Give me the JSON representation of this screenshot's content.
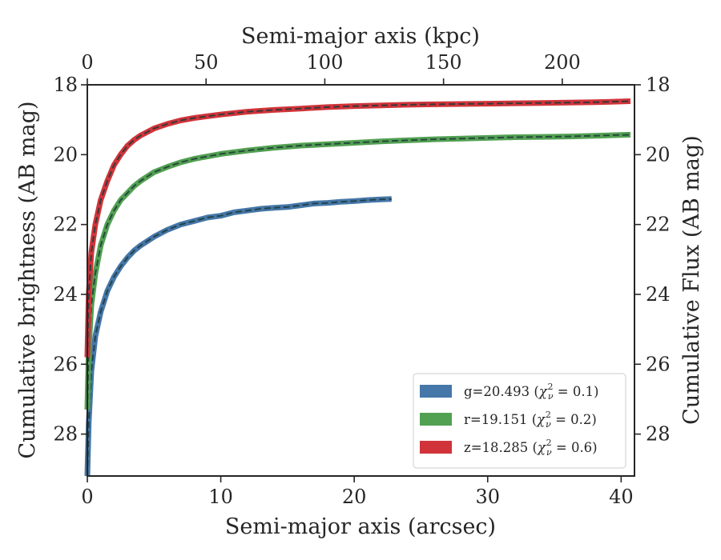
{
  "chart_data": {
    "type": "line",
    "xlabel": "Semi-major axis (arcsec)",
    "ylabel": "Cumulative brightness (AB mag)",
    "x2label": "Semi-major axis (kpc)",
    "y2label": "Cumulative Flux (AB mag)",
    "xlim": [
      0,
      41
    ],
    "ylim": [
      29.2,
      18
    ],
    "x2lim": [
      0,
      230.4
    ],
    "y_inverted": true,
    "xticks": [
      0,
      10,
      20,
      30,
      40
    ],
    "yticks": [
      18,
      20,
      22,
      24,
      26,
      28
    ],
    "x2ticks": [
      0,
      50,
      100,
      150,
      200
    ],
    "grid": false,
    "legend_position": "lower-right",
    "series": [
      {
        "name": "g=20.493",
        "chi2": "0.1",
        "color": "#4577a8",
        "x": [
          0.0,
          0.1,
          0.3,
          0.6,
          1.0,
          1.5,
          2.0,
          2.5,
          3.0,
          3.5,
          4.0,
          5.0,
          6.0,
          7.0,
          8.0,
          9.0,
          10.0,
          11.0,
          12.0,
          13.0,
          14.0,
          15.0,
          16.0,
          17.0,
          18.0,
          19.0,
          20.0,
          21.0,
          22.0,
          22.8
        ],
        "y": [
          29.2,
          27.7,
          26.2,
          25.2,
          24.5,
          23.9,
          23.5,
          23.2,
          22.95,
          22.75,
          22.6,
          22.35,
          22.15,
          22.0,
          21.9,
          21.8,
          21.75,
          21.65,
          21.6,
          21.55,
          21.52,
          21.5,
          21.45,
          21.4,
          21.38,
          21.35,
          21.33,
          21.3,
          21.28,
          21.27
        ]
      },
      {
        "name": "r=19.151",
        "chi2": "0.2",
        "color": "#52a052",
        "x": [
          0.0,
          0.1,
          0.3,
          0.6,
          1.0,
          1.5,
          2.0,
          2.5,
          3.0,
          3.5,
          4.0,
          5.0,
          6.0,
          7.0,
          8.0,
          10.0,
          12.0,
          14.0,
          16.0,
          18.0,
          20.0,
          22.0,
          24.0,
          26.0,
          28.0,
          30.0,
          32.0,
          34.0,
          36.0,
          38.0,
          40.7
        ],
        "y": [
          27.3,
          25.6,
          24.3,
          23.4,
          22.6,
          22.0,
          21.6,
          21.3,
          21.1,
          20.9,
          20.75,
          20.5,
          20.35,
          20.22,
          20.12,
          19.98,
          19.88,
          19.8,
          19.74,
          19.7,
          19.66,
          19.62,
          19.59,
          19.56,
          19.54,
          19.52,
          19.5,
          19.49,
          19.48,
          19.46,
          19.43
        ]
      },
      {
        "name": "z=18.285",
        "chi2": "0.6",
        "color": "#d0343a",
        "x": [
          0.0,
          0.1,
          0.3,
          0.6,
          1.0,
          1.5,
          2.0,
          2.5,
          3.0,
          3.5,
          4.0,
          5.0,
          6.0,
          7.0,
          8.0,
          10.0,
          12.0,
          14.0,
          16.0,
          18.0,
          20.0,
          22.0,
          24.0,
          26.0,
          28.0,
          30.0,
          32.0,
          34.0,
          36.0,
          38.0,
          40.7
        ],
        "y": [
          25.8,
          24.0,
          22.8,
          22.0,
          21.3,
          20.75,
          20.3,
          20.0,
          19.75,
          19.58,
          19.45,
          19.25,
          19.12,
          19.02,
          18.95,
          18.85,
          18.77,
          18.72,
          18.68,
          18.64,
          18.61,
          18.59,
          18.57,
          18.56,
          18.55,
          18.54,
          18.53,
          18.52,
          18.51,
          18.5,
          18.47
        ]
      }
    ]
  }
}
